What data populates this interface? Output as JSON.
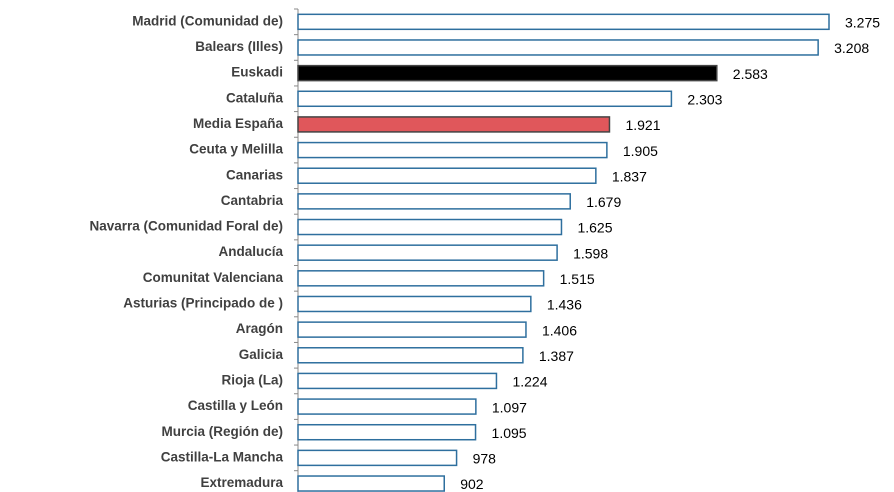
{
  "chart_data": {
    "type": "bar",
    "orientation": "horizontal",
    "categories": [
      "Madrid (Comunidad de)",
      "Balears (Illes)",
      "Euskadi",
      "Cataluña",
      "Media España",
      "Ceuta y Melilla",
      "Canarias",
      "Cantabria",
      "Navarra (Comunidad Foral de)",
      "Andalucía",
      "Comunitat Valenciana",
      "Asturias (Principado de )",
      "Aragón",
      "Galicia",
      "Rioja (La)",
      "Castilla y León",
      "Murcia (Región de)",
      "Castilla-La Mancha",
      "Extremadura"
    ],
    "values": [
      3275,
      3208,
      2583,
      2303,
      1921,
      1905,
      1837,
      1679,
      1625,
      1598,
      1515,
      1436,
      1406,
      1387,
      1224,
      1097,
      1095,
      978,
      902
    ],
    "value_labels": [
      "3.275",
      "3.208",
      "2.583",
      "2.303",
      "1.921",
      "1.905",
      "1.837",
      "1.679",
      "1.625",
      "1.598",
      "1.515",
      "1.436",
      "1.406",
      "1.387",
      "1.224",
      "1.097",
      "1.095",
      "978",
      "902"
    ],
    "colors": [
      "#ffffff",
      "#ffffff",
      "#000000",
      "#ffffff",
      "#e0575b",
      "#ffffff",
      "#ffffff",
      "#ffffff",
      "#ffffff",
      "#ffffff",
      "#ffffff",
      "#ffffff",
      "#ffffff",
      "#ffffff",
      "#ffffff",
      "#ffffff",
      "#ffffff",
      "#ffffff",
      "#ffffff"
    ],
    "edge_color": "#2e6f9e"
  }
}
